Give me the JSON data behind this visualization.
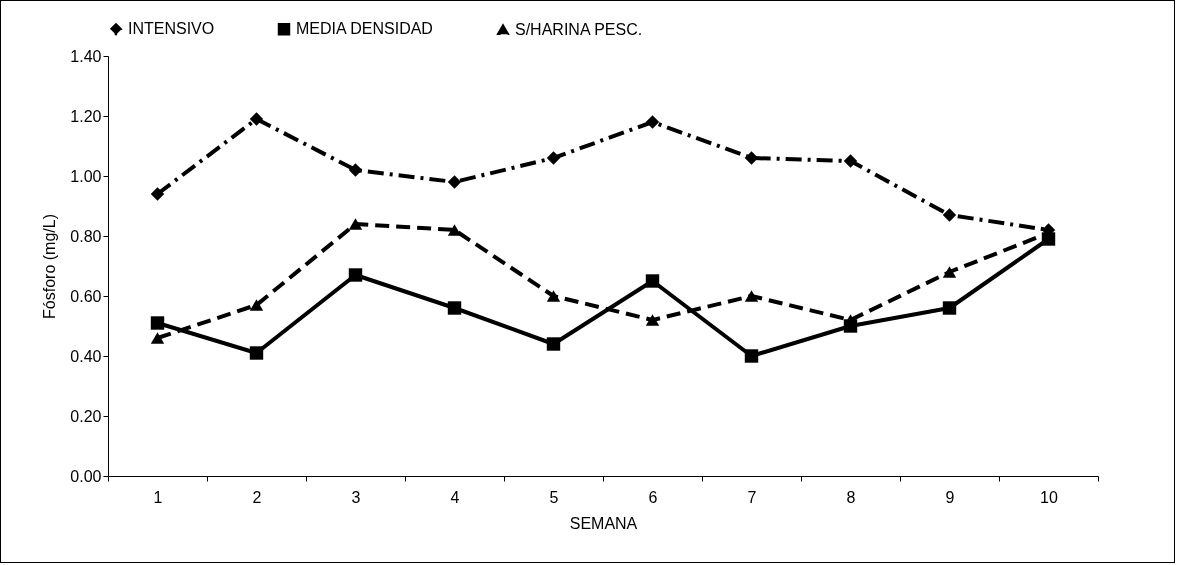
{
  "chart_data": {
    "type": "line",
    "xlabel": "SEMANA",
    "ylabel": "Fósforo (mg/L)",
    "categories": [
      "1",
      "2",
      "3",
      "4",
      "5",
      "6",
      "7",
      "8",
      "9",
      "10"
    ],
    "series": [
      {
        "name": "INTENSIVO",
        "color": "#000000",
        "marker": "diamond",
        "line_style": "dashdot",
        "values": [
          0.94,
          1.19,
          1.02,
          0.98,
          1.06,
          1.18,
          1.06,
          1.05,
          0.87,
          0.82
        ]
      },
      {
        "name": "MEDIA DENSIDAD",
        "color": "#000000",
        "marker": "square",
        "line_style": "solid",
        "values": [
          0.51,
          0.41,
          0.67,
          0.56,
          0.44,
          0.65,
          0.4,
          0.5,
          0.56,
          0.79
        ]
      },
      {
        "name": "S/HARINA PESC.",
        "color": "#000000",
        "marker": "triangle",
        "line_style": "dashed",
        "values": [
          0.46,
          0.57,
          0.84,
          0.82,
          0.6,
          0.52,
          0.6,
          0.52,
          0.68,
          0.81
        ]
      }
    ],
    "ylim": [
      0,
      1.4
    ],
    "yticks": [
      {
        "value": 0,
        "label": "0.00"
      },
      {
        "value": 0.2,
        "label": "0.20"
      },
      {
        "value": 0.4,
        "label": "0.40"
      },
      {
        "value": 0.6,
        "label": "0.60"
      },
      {
        "value": 0.8,
        "label": "0.80"
      },
      {
        "value": 1,
        "label": "1.00"
      },
      {
        "value": 1.2,
        "label": "1.20"
      },
      {
        "value": 1.4,
        "label": "1.40"
      }
    ],
    "grid": false,
    "legend": "top"
  }
}
